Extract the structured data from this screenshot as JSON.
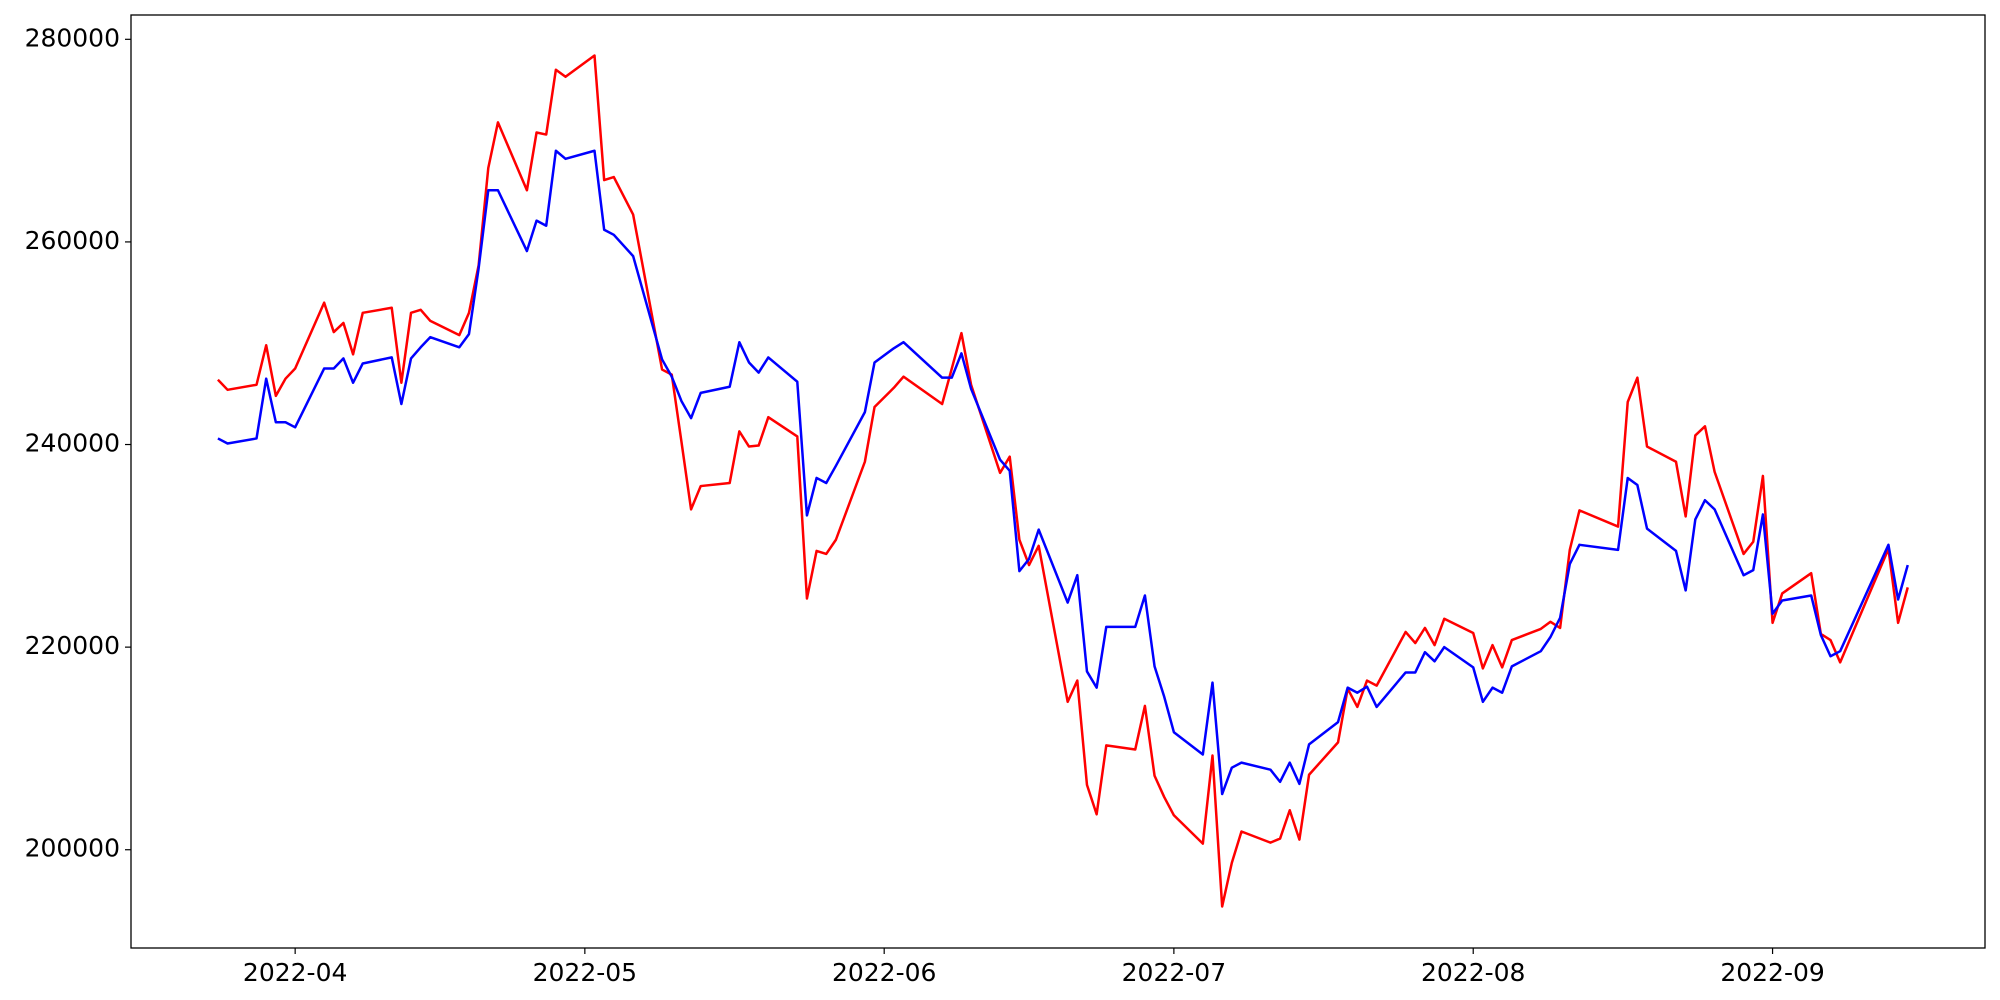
{
  "chart_data": {
    "type": "line",
    "x": [
      "2022-03-24",
      "2022-03-25",
      "2022-03-28",
      "2022-03-29",
      "2022-03-30",
      "2022-03-31",
      "2022-04-01",
      "2022-04-04",
      "2022-04-05",
      "2022-04-06",
      "2022-04-07",
      "2022-04-08",
      "2022-04-11",
      "2022-04-12",
      "2022-04-13",
      "2022-04-14",
      "2022-04-15",
      "2022-04-18",
      "2022-04-19",
      "2022-04-20",
      "2022-04-21",
      "2022-04-22",
      "2022-04-25",
      "2022-04-26",
      "2022-04-27",
      "2022-04-28",
      "2022-04-29",
      "2022-05-02",
      "2022-05-03",
      "2022-05-04",
      "2022-05-06",
      "2022-05-09",
      "2022-05-10",
      "2022-05-11",
      "2022-05-12",
      "2022-05-13",
      "2022-05-16",
      "2022-05-17",
      "2022-05-18",
      "2022-05-19",
      "2022-05-20",
      "2022-05-23",
      "2022-05-24",
      "2022-05-25",
      "2022-05-26",
      "2022-05-27",
      "2022-05-30",
      "2022-05-31",
      "2022-06-02",
      "2022-06-03",
      "2022-06-07",
      "2022-06-08",
      "2022-06-09",
      "2022-06-10",
      "2022-06-13",
      "2022-06-14",
      "2022-06-15",
      "2022-06-16",
      "2022-06-17",
      "2022-06-20",
      "2022-06-21",
      "2022-06-22",
      "2022-06-23",
      "2022-06-24",
      "2022-06-27",
      "2022-06-28",
      "2022-06-29",
      "2022-06-30",
      "2022-07-01",
      "2022-07-04",
      "2022-07-05",
      "2022-07-06",
      "2022-07-07",
      "2022-07-08",
      "2022-07-11",
      "2022-07-12",
      "2022-07-13",
      "2022-07-14",
      "2022-07-15",
      "2022-07-18",
      "2022-07-19",
      "2022-07-20",
      "2022-07-21",
      "2022-07-22",
      "2022-07-25",
      "2022-07-26",
      "2022-07-27",
      "2022-07-28",
      "2022-07-29",
      "2022-08-01",
      "2022-08-02",
      "2022-08-03",
      "2022-08-04",
      "2022-08-05",
      "2022-08-08",
      "2022-08-09",
      "2022-08-10",
      "2022-08-11",
      "2022-08-12",
      "2022-08-16",
      "2022-08-17",
      "2022-08-18",
      "2022-08-19",
      "2022-08-22",
      "2022-08-23",
      "2022-08-24",
      "2022-08-25",
      "2022-08-26",
      "2022-08-29",
      "2022-08-30",
      "2022-08-31",
      "2022-09-01",
      "2022-09-02",
      "2022-09-05",
      "2022-09-06",
      "2022-09-07",
      "2022-09-08",
      "2022-09-13",
      "2022-09-14",
      "2022-09-15"
    ],
    "series": [
      {
        "color": "red",
        "values": [
          246400,
          245400,
          245900,
          249800,
          244800,
          246500,
          247500,
          254000,
          251100,
          252000,
          248900,
          253000,
          253500,
          246100,
          253000,
          253300,
          252200,
          250800,
          253000,
          257700,
          267300,
          271800,
          265100,
          270800,
          270600,
          277000,
          276300,
          278400,
          266100,
          266400,
          262700,
          247400,
          246900,
          240300,
          233600,
          235900,
          236200,
          241300,
          239800,
          239900,
          242700,
          240800,
          224800,
          229500,
          229200,
          230600,
          238300,
          243700,
          245600,
          246700,
          244000,
          247500,
          251000,
          245900,
          237200,
          238800,
          230600,
          228100,
          230000,
          214600,
          216700,
          206400,
          203500,
          210300,
          209900,
          214200,
          207300,
          205200,
          203400,
          200600,
          209300,
          194400,
          198700,
          201800,
          200700,
          201100,
          203900,
          201000,
          207400,
          210600,
          215900,
          214100,
          216700,
          216200,
          221500,
          220400,
          221900,
          220200,
          222800,
          221400,
          217900,
          220200,
          218000,
          220700,
          221800,
          222500,
          221900,
          229600,
          233500,
          231900,
          244200,
          246600,
          239800,
          238300,
          232900,
          240900,
          241800,
          237300,
          229200,
          230400,
          236900,
          222400,
          225300,
          227300,
          221300,
          220700,
          218500,
          229700,
          222400,
          225900
        ]
      },
      {
        "color": "blue",
        "values": [
          240600,
          240100,
          240600,
          246500,
          242200,
          242200,
          241700,
          247500,
          247500,
          248500,
          246100,
          248000,
          248600,
          244000,
          248500,
          249600,
          250600,
          249600,
          250900,
          257400,
          265100,
          265100,
          259100,
          262100,
          261600,
          269000,
          268200,
          269000,
          261200,
          260700,
          258600,
          248400,
          246700,
          244300,
          242600,
          245100,
          245700,
          250100,
          248100,
          247100,
          248600,
          246200,
          233000,
          236700,
          236200,
          237900,
          243200,
          248100,
          249500,
          250100,
          246600,
          246600,
          249000,
          245500,
          238500,
          237400,
          227500,
          228700,
          231600,
          224400,
          227100,
          217600,
          216000,
          222000,
          222000,
          225100,
          218100,
          215100,
          211600,
          209400,
          216500,
          205500,
          208100,
          208600,
          207900,
          206700,
          208600,
          206500,
          210400,
          212600,
          216000,
          215500,
          216100,
          214100,
          217500,
          217500,
          219500,
          218600,
          220000,
          218000,
          214600,
          216000,
          215500,
          218100,
          219600,
          221000,
          222900,
          228200,
          230100,
          229600,
          236700,
          236000,
          231700,
          229500,
          225600,
          232600,
          234500,
          233600,
          227100,
          227600,
          233100,
          223300,
          224600,
          225100,
          221200,
          219100,
          219600,
          230100,
          224700,
          228100
        ]
      }
    ],
    "xlim": [
      "2022-03-15",
      "2022-09-23"
    ],
    "xticks": [
      {
        "value": "2022-04-01",
        "label": "2022-04"
      },
      {
        "value": "2022-05-01",
        "label": "2022-05"
      },
      {
        "value": "2022-06-01",
        "label": "2022-06"
      },
      {
        "value": "2022-07-01",
        "label": "2022-07"
      },
      {
        "value": "2022-08-01",
        "label": "2022-08"
      },
      {
        "value": "2022-09-01",
        "label": "2022-09"
      }
    ],
    "ylim": [
      190300,
      282400
    ],
    "yticks": [
      200000,
      220000,
      240000,
      260000,
      280000
    ],
    "grid": false
  }
}
